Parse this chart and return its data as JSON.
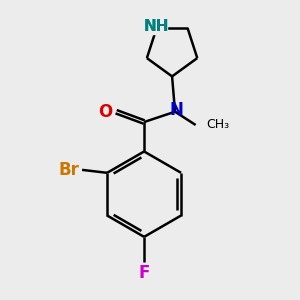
{
  "background_color": "#ececec",
  "bond_color": "#000000",
  "nitrogen_color": "#0000cc",
  "nh_color": "#008080",
  "oxygen_color": "#dd0000",
  "bromine_color": "#cc7700",
  "fluorine_color": "#cc00cc",
  "bond_width": 1.8,
  "figsize": [
    3.0,
    3.0
  ],
  "dpi": 100,
  "xlim": [
    0,
    10
  ],
  "ylim": [
    0,
    10
  ]
}
